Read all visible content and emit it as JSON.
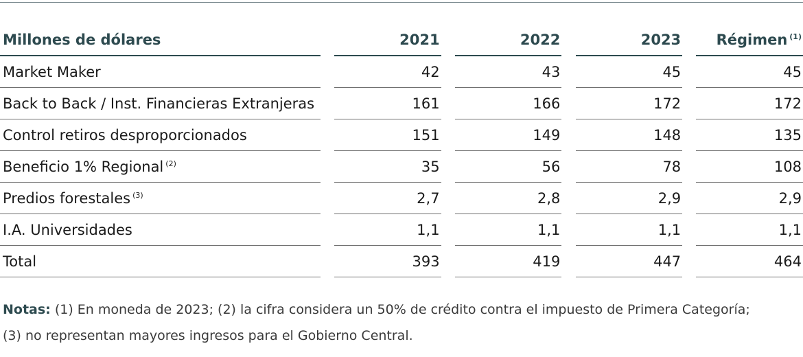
{
  "table": {
    "headers": {
      "label": "Millones de dólares",
      "y2021": "2021",
      "y2022": "2022",
      "y2023": "2023",
      "regimen": "Régimen",
      "regimen_note": "(1)"
    },
    "rows": [
      {
        "label": "Market Maker",
        "note": "",
        "v2021": "42",
        "v2022": "43",
        "v2023": "45",
        "regimen": "45"
      },
      {
        "label": "Back to Back / Inst. Financieras Extranjeras",
        "note": "",
        "v2021": "161",
        "v2022": "166",
        "v2023": "172",
        "regimen": "172"
      },
      {
        "label": "Control retiros desproporcionados",
        "note": "",
        "v2021": "151",
        "v2022": "149",
        "v2023": "148",
        "regimen": "135"
      },
      {
        "label": "Beneficio 1% Regional",
        "note": "(2)",
        "v2021": "35",
        "v2022": "56",
        "v2023": "78",
        "regimen": "108"
      },
      {
        "label": "Predios forestales",
        "note": "(3)",
        "v2021": "2,7",
        "v2022": "2,8",
        "v2023": "2,9",
        "regimen": "2,9"
      },
      {
        "label": "I.A. Universidades",
        "note": "",
        "v2021": "1,1",
        "v2022": "1,1",
        "v2023": "1,1",
        "regimen": "1,1"
      },
      {
        "label": "Total",
        "note": "",
        "v2021": "393",
        "v2022": "419",
        "v2023": "447",
        "regimen": "464"
      }
    ]
  },
  "notes": {
    "label": "Notas:",
    "line1": "(1) En moneda de 2023; (2) la cifra considera un 50% de crédito contra el impuesto de Primera Categoría;",
    "line2": "(3) no representan mayores ingresos para el Gobierno Central."
  }
}
